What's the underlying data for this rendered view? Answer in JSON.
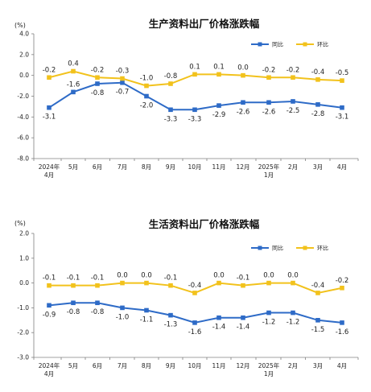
{
  "colors": {
    "yoy": "#2E6BC7",
    "mom": "#F2C21C",
    "axis": "#808080"
  },
  "chart_data": [
    {
      "type": "line",
      "title": "生产资料出厂价格涨跌幅",
      "ylabel": "(%)",
      "ylim": [
        -8.0,
        4.0
      ],
      "yticks": [
        "4.0",
        "2.0",
        "0.0",
        "-2.0",
        "-4.0",
        "-6.0",
        "-8.0"
      ],
      "ytick_values": [
        4,
        2,
        0,
        -2,
        -4,
        -6,
        -8
      ],
      "categories": [
        "2024年4月",
        "5月",
        "6月",
        "7月",
        "8月",
        "9月",
        "10月",
        "11月",
        "12月",
        "2025年1月",
        "2月",
        "3月",
        "4月"
      ],
      "x_labels": [
        [
          "2024年",
          "4月"
        ],
        [
          "5月"
        ],
        [
          "6月"
        ],
        [
          "7月"
        ],
        [
          "8月"
        ],
        [
          "9月"
        ],
        [
          "10月"
        ],
        [
          "11月"
        ],
        [
          "12月"
        ],
        [
          "2025年",
          "1月"
        ],
        [
          "2月"
        ],
        [
          "3月"
        ],
        [
          "4月"
        ]
      ],
      "legend": "top-right",
      "series": [
        {
          "name": "同比",
          "values": [
            -3.1,
            -1.6,
            -0.8,
            -0.7,
            -2.0,
            -3.3,
            -3.3,
            -2.9,
            -2.6,
            -2.6,
            -2.5,
            -2.8,
            -3.1
          ],
          "labels": [
            "-3.1",
            "-1.6",
            "-0.8",
            "-0.7",
            "-2.0",
            "-3.3",
            "-3.3",
            "-2.9",
            "-2.6",
            "-2.6",
            "-2.5",
            "-2.8",
            "-3.1"
          ]
        },
        {
          "name": "环比",
          "values": [
            -0.2,
            0.4,
            -0.2,
            -0.3,
            -1.0,
            -0.8,
            0.1,
            0.1,
            0.0,
            -0.2,
            -0.2,
            -0.4,
            -0.5
          ],
          "labels": [
            "-0.2",
            "0.4",
            "-0.2",
            "-0.3",
            "-1.0",
            "-0.8",
            "0.1",
            "0.1",
            "0.0",
            "-0.2",
            "-0.2",
            "-0.4",
            "-0.5"
          ]
        }
      ]
    },
    {
      "type": "line",
      "title": "生活资料出厂价格涨跌幅",
      "ylabel": "(%)",
      "ylim": [
        -3.0,
        2.0
      ],
      "yticks": [
        "2.0",
        "1.0",
        "0.0",
        "-1.0",
        "-2.0",
        "-3.0"
      ],
      "ytick_values": [
        2,
        1,
        0,
        -1,
        -2,
        -3
      ],
      "categories": [
        "2024年4月",
        "5月",
        "6月",
        "7月",
        "8月",
        "9月",
        "10月",
        "11月",
        "12月",
        "2025年1月",
        "2月",
        "3月",
        "4月"
      ],
      "x_labels": [
        [
          "2024年",
          "4月"
        ],
        [
          "5月"
        ],
        [
          "6月"
        ],
        [
          "7月"
        ],
        [
          "8月"
        ],
        [
          "9月"
        ],
        [
          "10月"
        ],
        [
          "11月"
        ],
        [
          "12月"
        ],
        [
          "2025年",
          "1月"
        ],
        [
          "2月"
        ],
        [
          "3月"
        ],
        [
          "4月"
        ]
      ],
      "legend": "top-right",
      "series": [
        {
          "name": "同比",
          "values": [
            -0.9,
            -0.8,
            -0.8,
            -1.0,
            -1.1,
            -1.3,
            -1.6,
            -1.4,
            -1.4,
            -1.2,
            -1.2,
            -1.5,
            -1.6
          ],
          "labels": [
            "-0.9",
            "-0.8",
            "-0.8",
            "-1.0",
            "-1.1",
            "-1.3",
            "-1.6",
            "-1.4",
            "-1.4",
            "-1.2",
            "-1.2",
            "-1.5",
            "-1.6"
          ]
        },
        {
          "name": "环比",
          "values": [
            -0.1,
            -0.1,
            -0.1,
            0.0,
            0.0,
            -0.1,
            -0.4,
            0.0,
            -0.1,
            0.0,
            0.0,
            -0.4,
            -0.2
          ],
          "labels": [
            "-0.1",
            "-0.1",
            "-0.1",
            "0.0",
            "0.0",
            "-0.1",
            "-0.4",
            "0.0",
            "-0.1",
            "0.0",
            "0.0",
            "-0.4",
            "-0.2"
          ]
        }
      ]
    }
  ]
}
